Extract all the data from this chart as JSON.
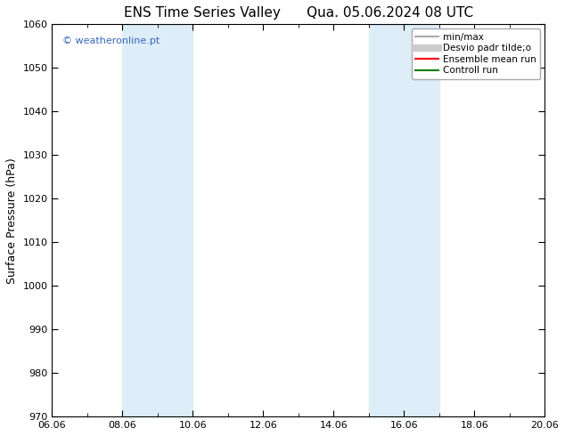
{
  "title": "ENS Time Series Valley      Qua. 05.06.2024 08 UTC",
  "ylabel": "Surface Pressure (hPa)",
  "ylim": [
    970,
    1060
  ],
  "yticks": [
    970,
    980,
    990,
    1000,
    1010,
    1020,
    1030,
    1040,
    1050,
    1060
  ],
  "xlim": [
    0,
    14
  ],
  "xtick_labels": [
    "06.06",
    "08.06",
    "10.06",
    "12.06",
    "14.06",
    "16.06",
    "18.06",
    "20.06"
  ],
  "xtick_positions": [
    0,
    2,
    4,
    6,
    8,
    10,
    12,
    14
  ],
  "shaded_regions": [
    {
      "xmin": 2,
      "xmax": 4,
      "color": "#ddeef8"
    },
    {
      "xmin": 9,
      "xmax": 11,
      "color": "#ddeef8"
    }
  ],
  "watermark": "© weatheronline.pt",
  "watermark_color": "#3366cc",
  "legend_items": [
    {
      "label": "min/max",
      "color": "#aaaaaa",
      "lw": 1.5,
      "style": "solid"
    },
    {
      "label": "Desvio padr tilde;o",
      "color": "#cccccc",
      "lw": 6,
      "style": "solid"
    },
    {
      "label": "Ensemble mean run",
      "color": "red",
      "lw": 1.5,
      "style": "solid"
    },
    {
      "label": "Controll run",
      "color": "green",
      "lw": 1.5,
      "style": "solid"
    }
  ],
  "background_color": "#ffffff",
  "spine_color": "#000000",
  "title_fontsize": 11,
  "axis_label_fontsize": 9,
  "tick_fontsize": 8,
  "watermark_fontsize": 8
}
